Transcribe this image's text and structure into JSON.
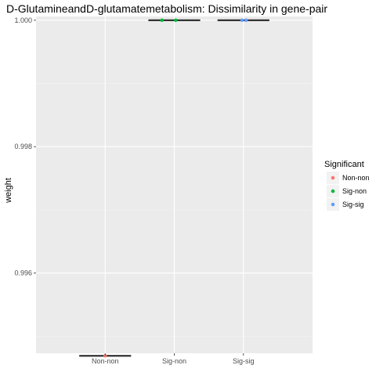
{
  "chart_data": {
    "type": "box",
    "title": "D-GlutamineandD-glutamatemetabolism: Dissimilarity in gene-pair",
    "xlabel": "",
    "ylabel": "weight",
    "categories": [
      "Non-non",
      "Sig-non",
      "Sig-sig"
    ],
    "ylim": [
      0.99473,
      1.00006
    ],
    "yticks": [
      0.996,
      0.998,
      1.0
    ],
    "ytick_labels": [
      "0.996",
      "0.998",
      "1.000"
    ],
    "grid": true,
    "legend": {
      "title": "Significant",
      "placement": "right",
      "entries": [
        {
          "label": "Non-non",
          "color": "#F8766D"
        },
        {
          "label": "Sig-non",
          "color": "#00BA38"
        },
        {
          "label": "Sig-sig",
          "color": "#619CFF"
        }
      ]
    },
    "boxes": [
      {
        "category": "Non-non",
        "median": 0.99469
      },
      {
        "category": "Sig-non",
        "median": 1.0
      },
      {
        "category": "Sig-sig",
        "median": 1.0
      }
    ],
    "points": [
      {
        "category": "Non-non",
        "jitter": 0.0,
        "y": 0.99469
      },
      {
        "category": "Sig-non",
        "jitter": -0.18,
        "y": 1.0
      },
      {
        "category": "Sig-non",
        "jitter": 0.02,
        "y": 1.0
      },
      {
        "category": "Sig-sig",
        "jitter": -0.02,
        "y": 1.0
      },
      {
        "category": "Sig-sig",
        "jitter": 0.04,
        "y": 1.0
      }
    ]
  }
}
